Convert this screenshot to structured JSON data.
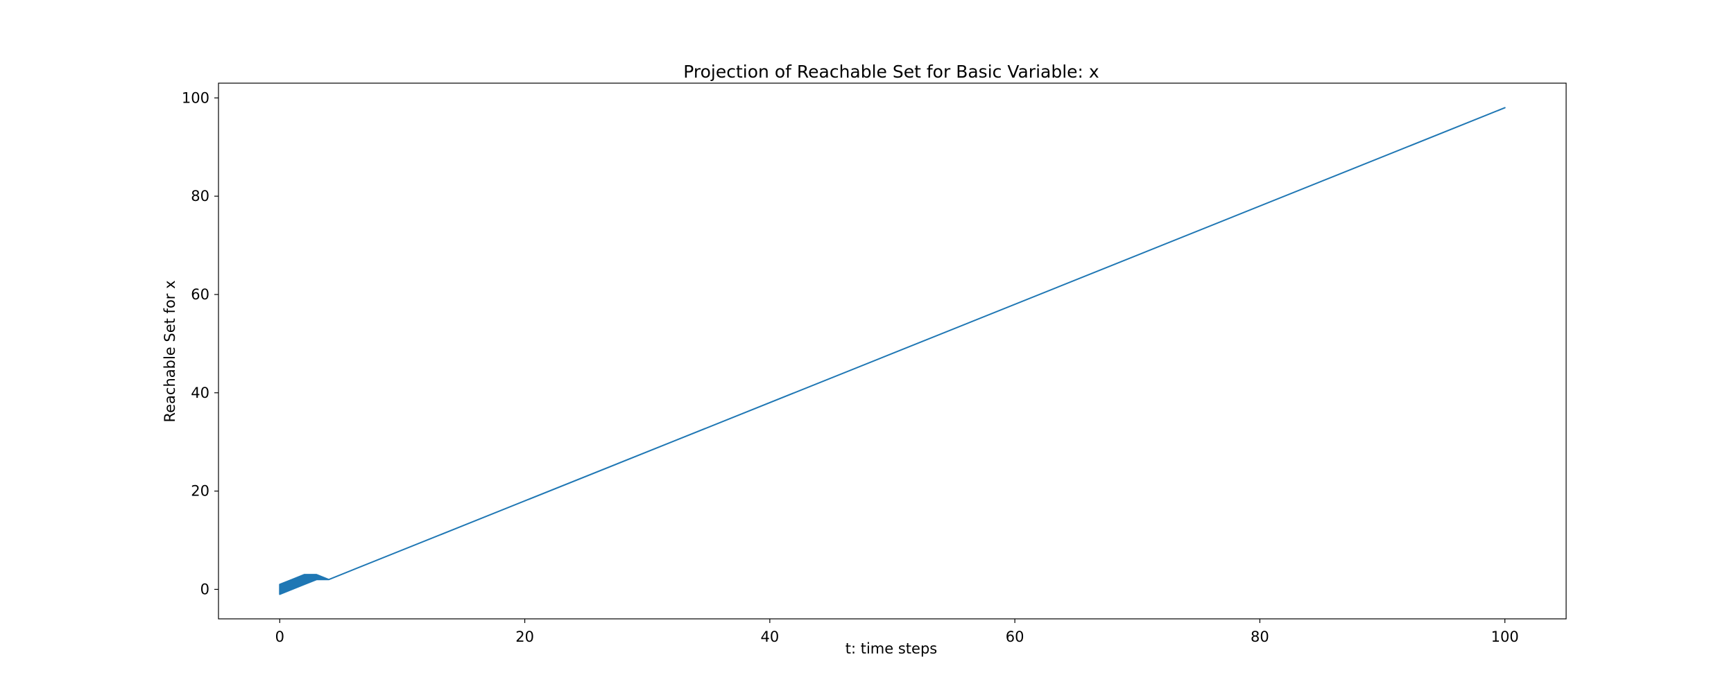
{
  "chart_data": {
    "type": "area",
    "title": "Projection of Reachable Set for Basic Variable: x",
    "xlabel": "t: time steps",
    "ylabel": "Reachable Set for x",
    "xlim": [
      -5,
      105
    ],
    "ylim": [
      -6,
      103
    ],
    "xticks": [
      0,
      20,
      40,
      60,
      80,
      100
    ],
    "yticks": [
      0,
      20,
      40,
      60,
      80,
      100
    ],
    "grid": false,
    "legend": "none",
    "series": [
      {
        "color": "#1f77b4",
        "x": [
          0,
          1,
          2,
          3,
          4,
          100
        ],
        "lower": [
          -1,
          0,
          1,
          2,
          2,
          98
        ],
        "upper": [
          1,
          2,
          3,
          3,
          2,
          98
        ]
      }
    ]
  }
}
